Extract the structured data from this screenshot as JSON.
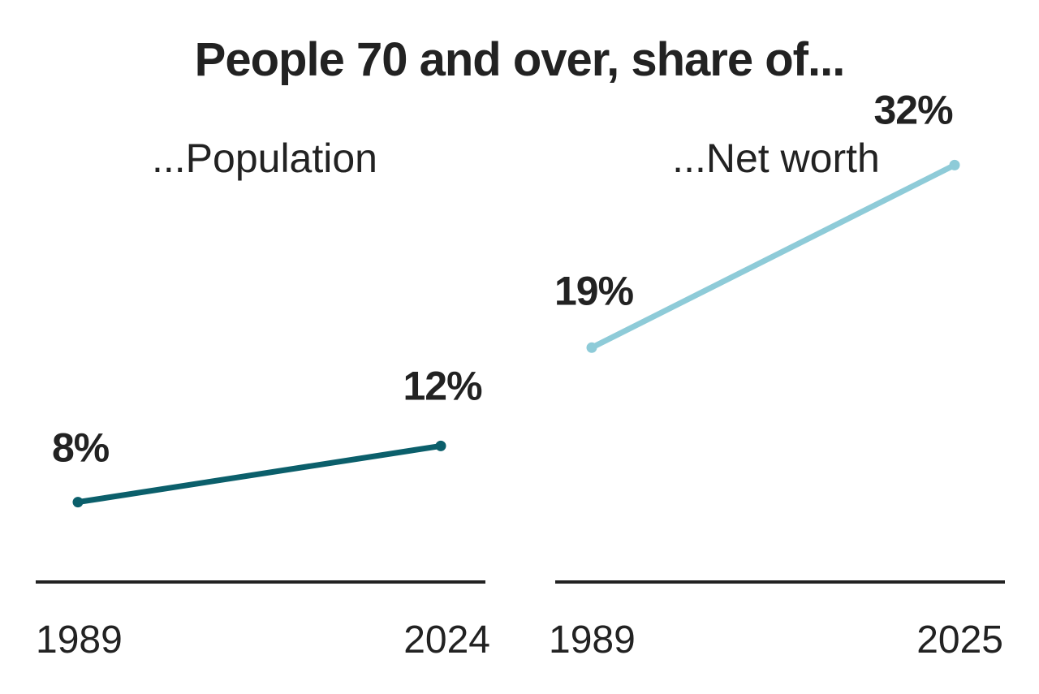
{
  "title": "People 70 and over, share of...",
  "chart_data": [
    {
      "type": "line",
      "title": "...Population",
      "x": [
        "1989",
        "2024"
      ],
      "series": [
        {
          "values": [
            8,
            12
          ],
          "labels": [
            "8%",
            "12%"
          ],
          "color": "#0b5f6b"
        }
      ],
      "ylim": [
        0,
        35
      ],
      "grid": false
    },
    {
      "type": "line",
      "title": "...Net worth",
      "x": [
        "1989",
        "2025"
      ],
      "series": [
        {
          "values": [
            19,
            32
          ],
          "labels": [
            "19%",
            "32%"
          ],
          "color": "#8ecbd8"
        }
      ],
      "ylim": [
        0,
        35
      ],
      "grid": false
    }
  ]
}
